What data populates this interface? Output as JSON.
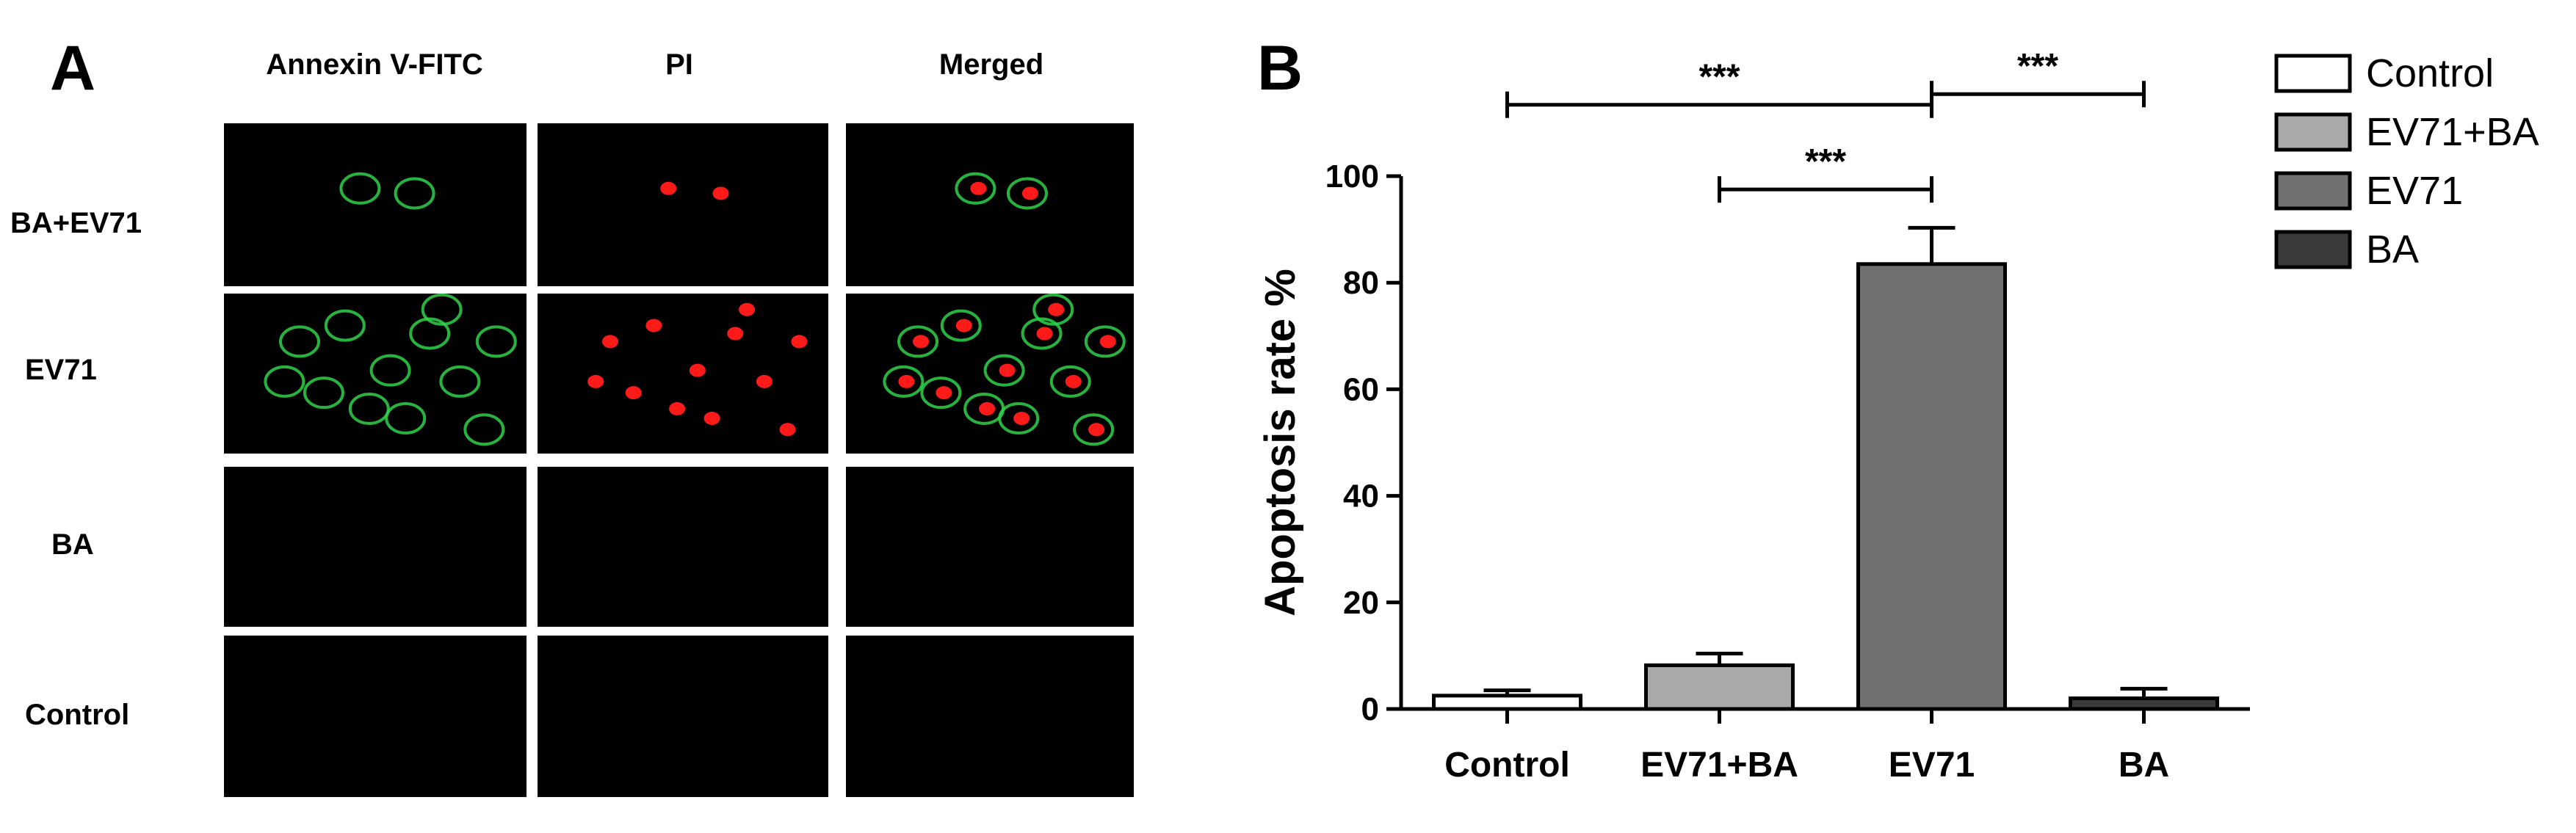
{
  "panel_a": {
    "letter": "A",
    "columns": [
      "Annexin V-FITC",
      "PI",
      "Merged"
    ],
    "rows": [
      "BA+EV71",
      "EV71",
      "BA",
      "Control"
    ]
  },
  "panel_b": {
    "letter": "B"
  },
  "colors": {
    "green_stain": "#2fd24a",
    "red_stain": "#ff1a1a"
  },
  "chart_data": {
    "type": "bar",
    "categories": [
      "Control",
      "EV71+BA",
      "EV71",
      "BA"
    ],
    "values": [
      2.5,
      8.2,
      83.5,
      2.0
    ],
    "errors": [
      1.0,
      2.2,
      6.8,
      1.8
    ],
    "colors": [
      "#ffffff",
      "#a9a9a9",
      "#707070",
      "#3a3a3a"
    ],
    "ylabel": "Apoptosis rate %",
    "ylim": [
      0,
      100
    ],
    "yticks": [
      0,
      20,
      40,
      60,
      80,
      100
    ],
    "legend": [
      {
        "label": "Control",
        "color": "#ffffff"
      },
      {
        "label": "EV71+BA",
        "color": "#a9a9a9"
      },
      {
        "label": "EV71",
        "color": "#707070"
      },
      {
        "label": "BA",
        "color": "#3a3a3a"
      }
    ],
    "legend_position": "top-right",
    "significance": [
      {
        "from": "Control",
        "to": "EV71",
        "label": "***"
      },
      {
        "from": "EV71+BA",
        "to": "EV71",
        "label": "***"
      },
      {
        "from": "EV71",
        "to": "BA",
        "label": "***"
      }
    ]
  }
}
